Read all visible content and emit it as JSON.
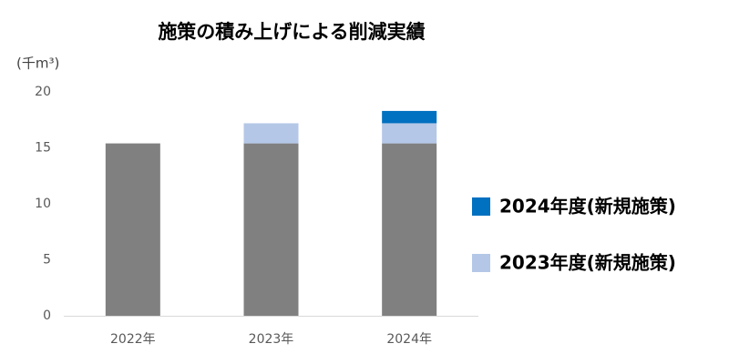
{
  "chart_data": {
    "type": "stacked_bar",
    "title": "施策の積み上げによる削減実績",
    "ylabel": "(千m³)",
    "categories": [
      "2022年",
      "2023年",
      "2024年"
    ],
    "series": [
      {
        "color": "#808080",
        "values": [
          15.4,
          15.4,
          15.4
        ]
      },
      {
        "name": "2023年度(新規施策)",
        "color": "#b4c7e7",
        "values": [
          null,
          1.8,
          1.8
        ]
      },
      {
        "name": "2024年度(新規施策)",
        "color": "#0070c0",
        "values": [
          null,
          null,
          1.1
        ]
      }
    ],
    "ylim": [
      0,
      20
    ],
    "yticks": [
      0,
      5,
      10,
      15,
      20
    ],
    "grid": false,
    "legend": "right"
  }
}
